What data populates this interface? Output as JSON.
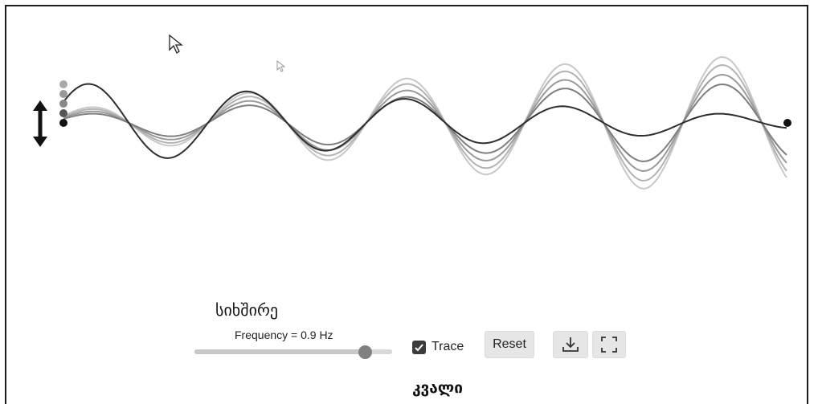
{
  "app": {
    "title_geo": "სიხშირე",
    "bottom_label": "კვალი"
  },
  "controls": {
    "frequency_label": "Frequency = 0.9 Hz",
    "frequency_value_fraction": 0.86,
    "trace_label": "Trace",
    "trace_checked": true,
    "reset_label": "Reset"
  },
  "icons": {
    "amplitude_arrow": "double-vertical-arrow-icon",
    "download": "download-icon",
    "fullscreen": "fullscreen-icon",
    "cursor": "mouse-pointer-icon"
  },
  "colors": {
    "frame": "#1a1a1a",
    "wave_dark": "#333333",
    "wave_light": "#c2c2c2",
    "button_bg": "#e6e6e6"
  }
}
